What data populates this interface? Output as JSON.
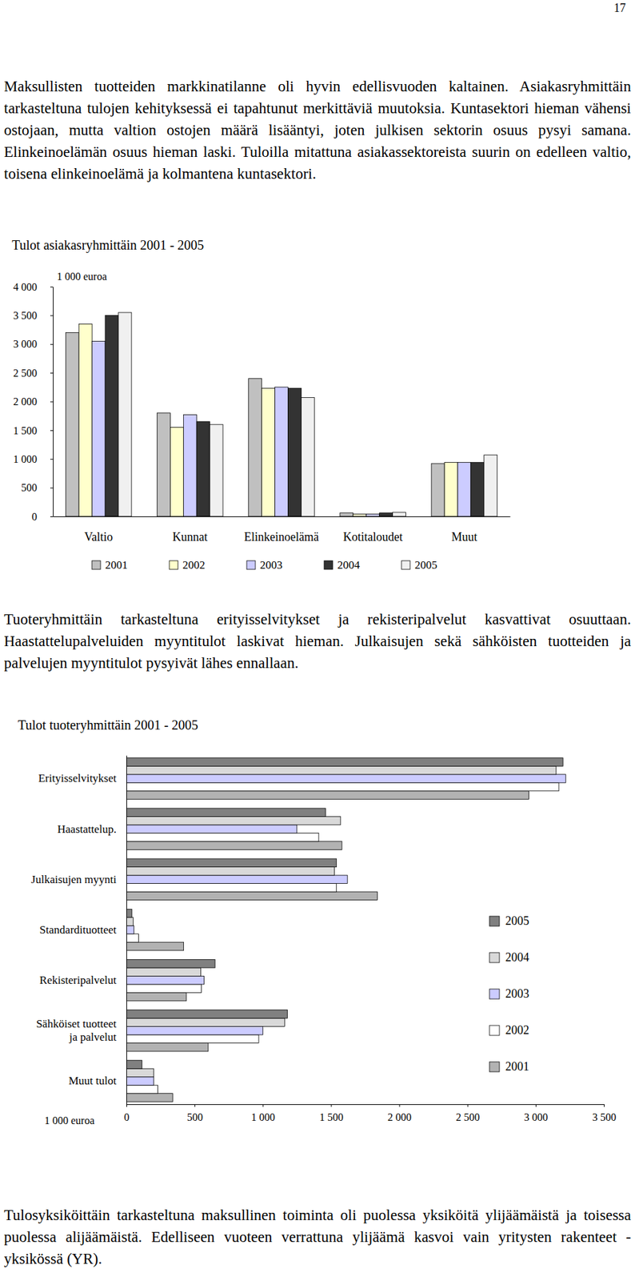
{
  "page_number": 17,
  "paragraphs": [
    "Maksullisten tuotteiden markkinatilanne oli hyvin edellisvuoden kaltainen. Asiakasryhmittäin tarkasteltuna tulojen kehityksessä ei tapahtunut merkittäviä muutoksia. Kuntasektori hieman vähensi ostojaan, mutta valtion ostojen määrä lisääntyi, joten julkisen sektorin osuus pysyi samana. Elinkeinoelämän osuus hieman laski. Tuloilla mitattuna asiakassektoreista suurin on edelleen valtio, toisena elinkeinoelämä ja kolmantena kuntasektori.",
    "Tuoteryhmittäin tarkasteltuna erityisselvitykset ja rekisteripalvelut kasvattivat osuuttaan. Haastattelupalveluiden myyntitulot laskivat hieman. Julkaisujen sekä sähköisten tuotteiden ja palvelujen myyntitulot pysyivät lähes ennallaan.",
    "Tulosyksiköittäin tarkasteltuna maksullinen toiminta oli puolessa yksiköitä ylijäämäistä ja toisessa puolessa alijäämäistä. Edelliseen vuoteen verrattuna ylijäämä kasvoi vain yritysten rakenteet -yksikössä (YR)."
  ],
  "chart_data": [
    {
      "type": "bar",
      "title": "Tulot asiakasryhmittäin 2001 - 2005",
      "y_label": "1 000 euroa",
      "categories": [
        "Valtio",
        "Kunnat",
        "Elinkeinoelämä",
        "Kotitaloudet",
        "Muut"
      ],
      "series": [
        {
          "name": "2001",
          "color": "#c0c0c0",
          "values": [
            3200,
            1800,
            2400,
            60,
            920
          ]
        },
        {
          "name": "2002",
          "color": "#ffffcc",
          "values": [
            3350,
            1550,
            2230,
            40,
            940
          ]
        },
        {
          "name": "2003",
          "color": "#ccccff",
          "values": [
            3050,
            1770,
            2250,
            40,
            940
          ]
        },
        {
          "name": "2004",
          "color": "#333333",
          "values": [
            3500,
            1650,
            2230,
            60,
            940
          ]
        },
        {
          "name": "2005",
          "color": "#f0f0f0",
          "values": [
            3550,
            1600,
            2070,
            70,
            1070
          ]
        }
      ],
      "ylim": [
        0,
        4000
      ],
      "yticks": [
        0,
        500,
        {
          "value": 1000,
          "label": "1 000"
        },
        {
          "value": 1500,
          "label": "1 500"
        },
        {
          "value": 2000,
          "label": "2 000"
        },
        {
          "value": 2500,
          "label": "2 500"
        },
        {
          "value": 3000,
          "label": "3 000"
        },
        {
          "value": 3500,
          "label": "3 500"
        },
        {
          "value": 4000,
          "label": "4 000"
        }
      ],
      "legend": "bottom",
      "grid": false
    },
    {
      "type": "bar",
      "orientation": "horizontal",
      "title": "Tulot tuoteryhmittäin 2001 - 2005",
      "x_label": "1 000 euroa",
      "categories": [
        "Erityisselvitykset",
        "Haastattelup.",
        "Julkaisujen myynti",
        "Standardituotteet",
        "Rekisteripalvelut",
        "Sähköiset tuotteet ja palvelut",
        "Muut tulot"
      ],
      "series": [
        {
          "name": "2001",
          "color": "#b2b2b2",
          "values": [
            2950,
            1580,
            1840,
            420,
            440,
            600,
            340
          ]
        },
        {
          "name": "2002",
          "color": "#ffffff",
          "values": [
            3170,
            1410,
            1540,
            90,
            550,
            970,
            230
          ]
        },
        {
          "name": "2003",
          "color": "#ccccff",
          "values": [
            3220,
            1250,
            1620,
            55,
            570,
            1000,
            200
          ]
        },
        {
          "name": "2004",
          "color": "#d9d9d9",
          "values": [
            3150,
            1570,
            1525,
            50,
            545,
            1160,
            200
          ]
        },
        {
          "name": "2005",
          "color": "#808080",
          "values": [
            3200,
            1460,
            1540,
            40,
            650,
            1180,
            115
          ]
        }
      ],
      "xlim": [
        0,
        3500
      ],
      "xticks": [
        0,
        500,
        {
          "value": 1000,
          "label": "1 000"
        },
        {
          "value": 1500,
          "label": "1 500"
        },
        {
          "value": 2000,
          "label": "2 000"
        },
        {
          "value": 2500,
          "label": "2 500"
        },
        {
          "value": 3000,
          "label": "3 000"
        },
        {
          "value": 3500,
          "label": "3 500"
        }
      ],
      "legend": "right",
      "grid": false
    }
  ]
}
